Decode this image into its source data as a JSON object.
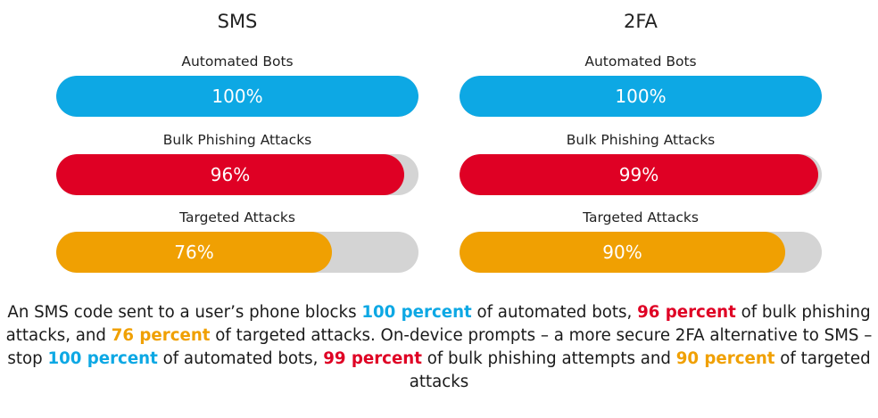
{
  "colors": {
    "bots": "#0da8e4",
    "bulk": "#df0024",
    "targeted": "#f0a002",
    "track": "#d4d4d4"
  },
  "chart_data": [
    {
      "type": "bar",
      "title": "SMS",
      "orientation": "horizontal",
      "categories": [
        "Automated Bots",
        "Bulk Phishing Attacks",
        "Targeted Attacks"
      ],
      "values": [
        100,
        96,
        76
      ],
      "labels": [
        "100%",
        "96%",
        "76%"
      ],
      "xlim": [
        0,
        100
      ]
    },
    {
      "type": "bar",
      "title": "2FA",
      "orientation": "horizontal",
      "categories": [
        "Automated Bots",
        "Bulk Phishing Attacks",
        "Targeted Attacks"
      ],
      "values": [
        100,
        99,
        90
      ],
      "labels": [
        "100%",
        "99%",
        "90%"
      ],
      "xlim": [
        0,
        100
      ]
    }
  ],
  "caption": [
    {
      "text": "An SMS code sent to a user’s phone blocks "
    },
    {
      "text": "100 percent",
      "color": "bots"
    },
    {
      "text": " of automated bots, "
    },
    {
      "text": "96 percent",
      "color": "bulk"
    },
    {
      "text": " of bulk phishing attacks, and "
    },
    {
      "text": "76 percent",
      "color": "targeted"
    },
    {
      "text": " of targeted attacks. On-device prompts – a more secure 2FA alternative to SMS – stop "
    },
    {
      "text": "100 percent",
      "color": "bots"
    },
    {
      "text": " of automated bots, "
    },
    {
      "text": "99 percent",
      "color": "bulk"
    },
    {
      "text": " of bulk phishing attempts and "
    },
    {
      "text": "90 percent",
      "color": "targeted"
    },
    {
      "text": " of targeted attacks"
    }
  ]
}
